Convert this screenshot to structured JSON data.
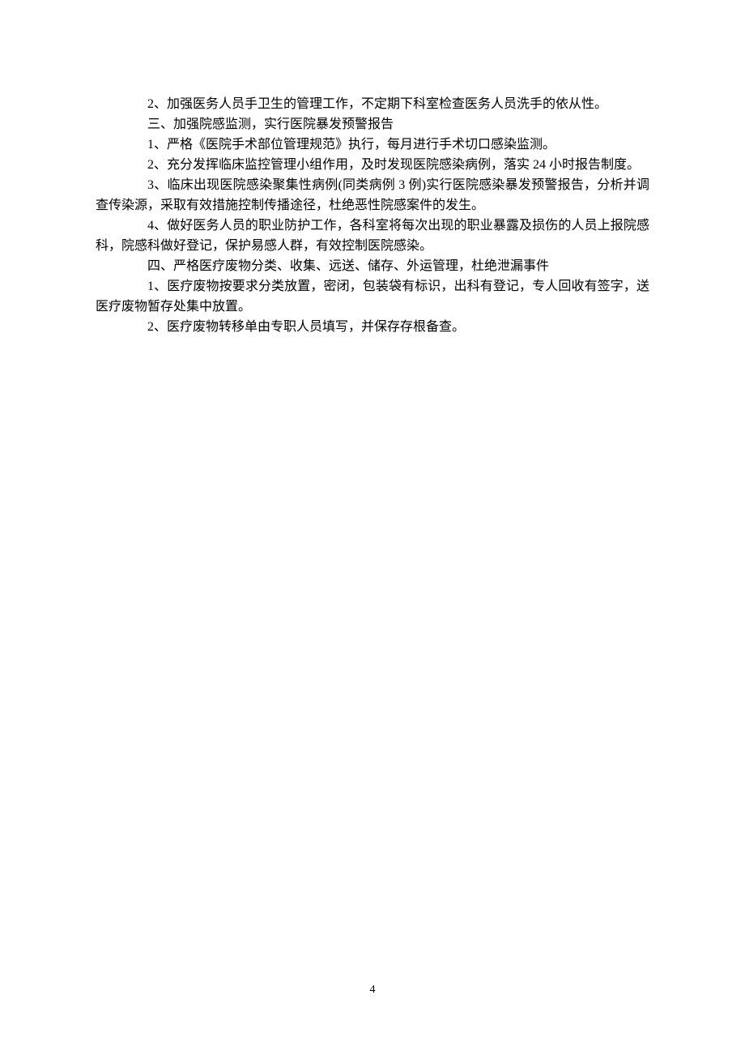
{
  "document": {
    "paragraphs": [
      "2、加强医务人员手卫生的管理工作，不定期下科室检查医务人员洗手的依从性。",
      "三、加强院感监测，实行医院暴发预警报告",
      "1、严格《医院手术部位管理规范》执行，每月进行手术切口感染监测。",
      "2、充分发挥临床监控管理小组作用，及时发现医院感染病例，落实 24 小时报告制度。",
      "3、临床出现医院感染聚集性病例(同类病例 3 例)实行医院感染暴发预警报告，分析并调查传染源，采取有效措施控制传播途径，杜绝恶性院感案件的发生。",
      "4、做好医务人员的职业防护工作，各科室将每次出现的职业暴露及损伤的人员上报院感科，院感科做好登记，保护易感人群，有效控制医院感染。",
      "四、严格医疗废物分类、收集、远送、储存、外运管理，杜绝泄漏事件",
      "1、医疗废物按要求分类放置，密闭，包装袋有标识，出科有登记，专人回收有签字，送医疗废物暂存处集中放置。",
      "2、医疗废物转移单由专职人员填写，并保存存根备查。"
    ],
    "pageNumber": "4"
  },
  "styles": {
    "fontSize": 16,
    "lineHeight": 25,
    "textColor": "#000000",
    "backgroundColor": "#ffffff",
    "pageNumberFontSize": 14
  }
}
